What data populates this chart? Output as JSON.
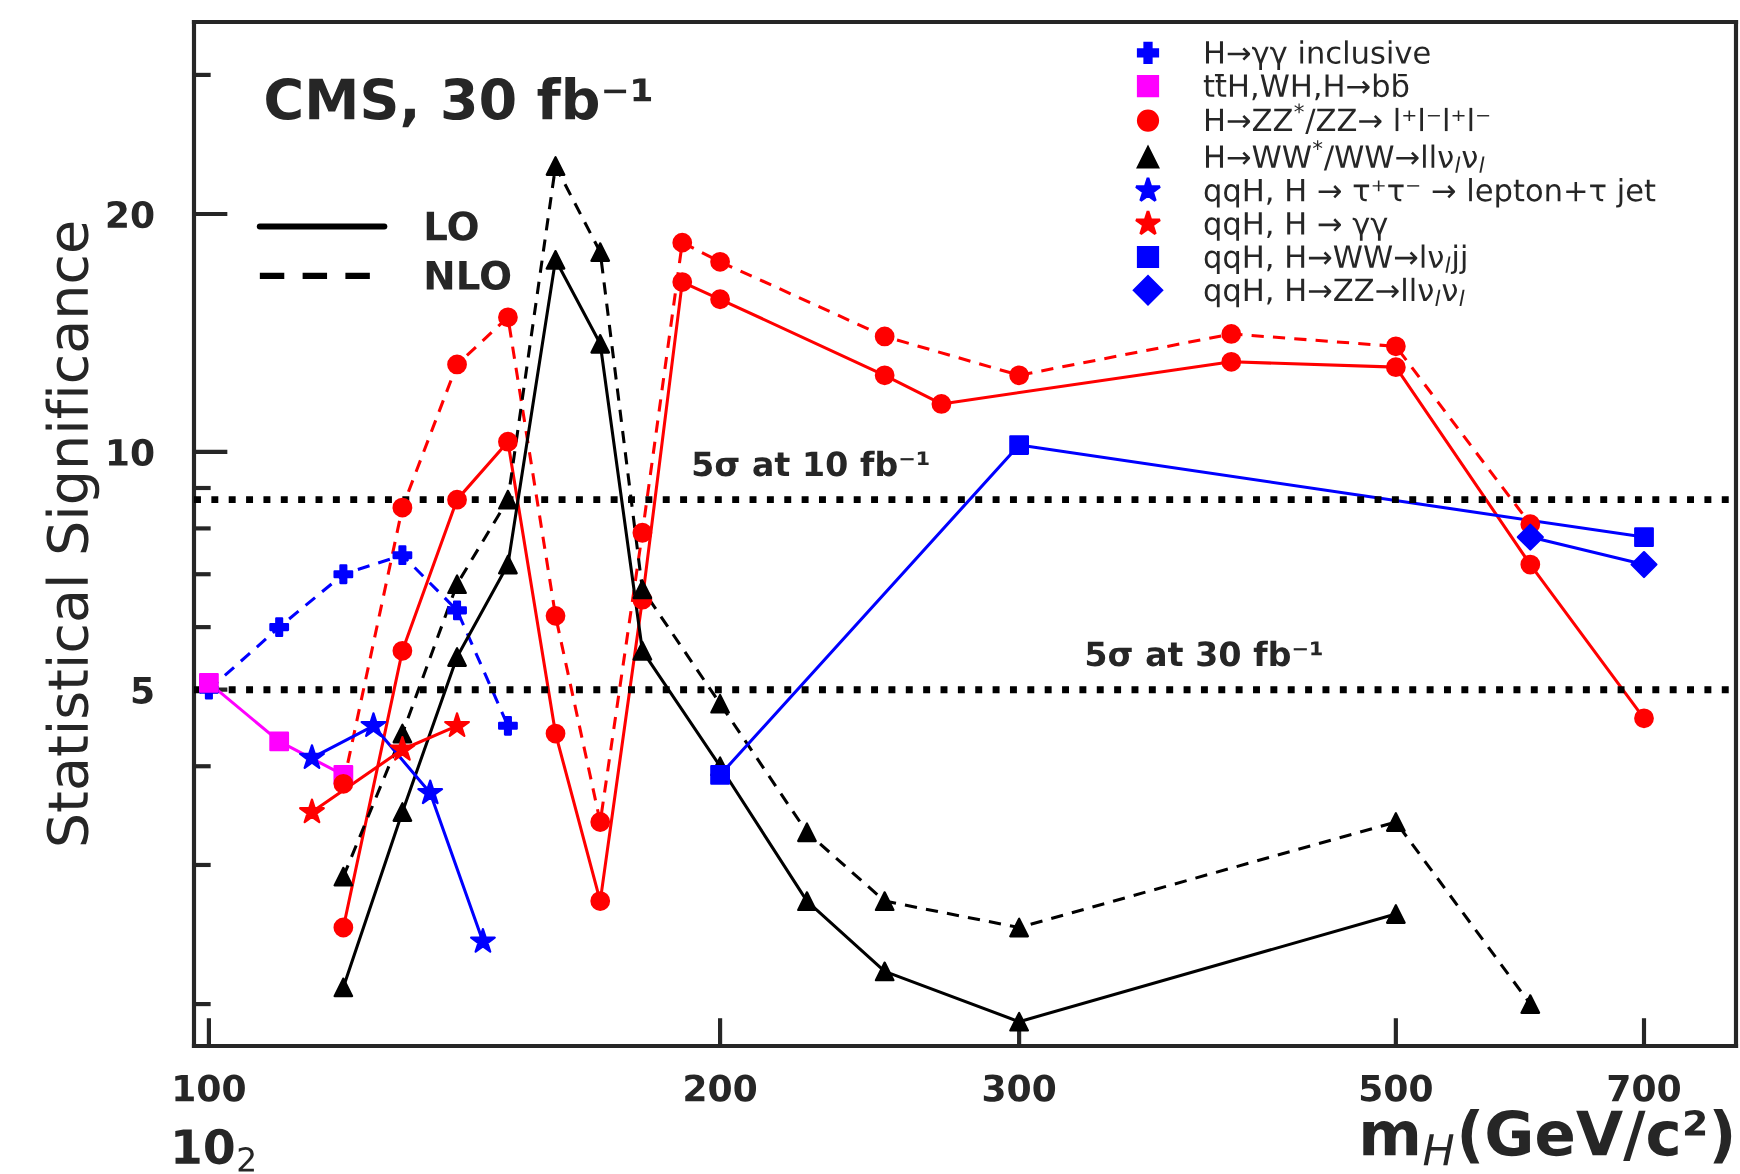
{
  "chart_data": {
    "type": "line",
    "title": "CMS, 30 fb⁻¹",
    "xlabel": "m$_{H}$(GeV/c²)",
    "ylabel": "Statistical Significance",
    "annotations": [
      "10$_{2}$"
    ],
    "xlim": [
      98,
      793
    ],
    "xticks": [
      100,
      200,
      300,
      500,
      700
    ],
    "log": "xy",
    "ylim": [
      1.77,
      35
    ],
    "yticks": [
      {
        "value": 2,
        "label": null
      },
      {
        "value": 3,
        "label": null
      },
      {
        "value": 4,
        "label": null
      },
      5,
      {
        "value": 6,
        "label": null
      },
      {
        "value": 7,
        "label": null
      },
      {
        "value": 8,
        "label": null
      },
      {
        "value": 9,
        "label": null
      },
      10,
      20,
      {
        "value": 30,
        "label": null
      }
    ],
    "grid": false,
    "legend": "top right",
    "ref_lines": [
      {
        "axis": "y",
        "value": 8.7,
        "label": "5σ at 10 fb⁻¹",
        "color": "#000000",
        "line_style": "dotted"
      },
      {
        "axis": "y",
        "value": 5.0,
        "label": "5σ at 30 fb⁻¹",
        "color": "#000000",
        "line_style": "dotted"
      }
    ],
    "series": [
      {
        "name": "H→γγ inclusive",
        "color": "#0000ff",
        "marker": "cross",
        "line_style": "dashed",
        "x": [
          100,
          110,
          120,
          130,
          140,
          150
        ],
        "values": [
          5.0,
          6.0,
          7.0,
          7.4,
          6.3,
          4.5
        ]
      },
      {
        "name": "tt̄H,WH,H→bb̄",
        "color": "#ff00ff",
        "marker": "square",
        "line_style": "solid",
        "x": [
          100,
          110,
          120
        ],
        "values": [
          5.1,
          4.3,
          3.9
        ]
      },
      {
        "name": "H→ZZ$^{*}$/ZZ→ l⁺l⁻l⁺l⁻",
        "color": "#ff0000",
        "marker": "circle",
        "line_style": "solid",
        "x": [
          120,
          130,
          140,
          150,
          160,
          170,
          180,
          190,
          200,
          250,
          270,
          400,
          500,
          600,
          700
        ],
        "values": [
          2.5,
          5.6,
          8.7,
          10.3,
          4.4,
          2.7,
          6.5,
          16.4,
          15.6,
          12.5,
          11.5,
          13.0,
          12.8,
          7.2,
          4.6
        ]
      },
      {
        "color": "#ff0000",
        "marker": "circle",
        "line_style": "dashed",
        "x": [
          120,
          130,
          140,
          150,
          160,
          170,
          180,
          190,
          200,
          250,
          300,
          400,
          500,
          600
        ],
        "values": [
          3.8,
          8.5,
          12.9,
          14.8,
          6.2,
          3.4,
          7.9,
          18.4,
          17.4,
          14.0,
          12.5,
          14.1,
          13.6,
          8.1
        ]
      },
      {
        "name": "H→WW$^{*}$/WW→llν$_{l}$ν$_{l}$",
        "color": "#000000",
        "marker": "triangle",
        "line_style": "solid",
        "x": [
          120,
          130,
          140,
          150,
          160,
          170,
          180,
          200,
          225,
          250,
          300,
          500
        ],
        "values": [
          2.1,
          3.5,
          5.5,
          7.2,
          17.5,
          13.7,
          5.6,
          4.0,
          2.7,
          2.2,
          1.9,
          2.6
        ]
      },
      {
        "color": "#000000",
        "marker": "triangle",
        "line_style": "dashed",
        "x": [
          120,
          130,
          140,
          150,
          160,
          170,
          180,
          200,
          225,
          250,
          300,
          500,
          600
        ],
        "values": [
          2.9,
          4.4,
          6.8,
          8.7,
          23.0,
          17.9,
          6.7,
          4.8,
          3.3,
          2.7,
          2.5,
          3.4,
          2.0
        ]
      },
      {
        "name": "qqH, H → τ⁺τ⁻ → lepton+τ jet",
        "color": "#0000ff",
        "marker": "star",
        "line_style": "solid",
        "x": [
          115,
          125,
          135,
          145
        ],
        "values": [
          4.1,
          4.5,
          3.7,
          2.4
        ]
      },
      {
        "name": "qqH, H → γγ",
        "color": "#ff0000",
        "marker": "star",
        "line_style": "solid",
        "x": [
          115,
          130,
          140
        ],
        "values": [
          3.5,
          4.2,
          4.5
        ]
      },
      {
        "name": "qqH, H→WW→lν$_{l}$jj",
        "color": "#0000ff",
        "marker": "square",
        "line_style": "solid",
        "x": [
          200,
          300,
          700
        ],
        "values": [
          3.9,
          10.2,
          7.8
        ]
      },
      {
        "name": "qqH, H→ZZ→llν$_{l}$ν$_{l}$",
        "color": "#0000ff",
        "marker": "diamond",
        "line_style": "solid",
        "x": [
          600,
          700
        ],
        "values": [
          7.8,
          7.2
        ]
      },
      {
        "name": "LO",
        "color": "#000000",
        "marker": "none",
        "line_style": "solid"
      },
      {
        "name": "NLO",
        "color": "#000000",
        "marker": "none",
        "line_style": "dashed"
      }
    ]
  }
}
